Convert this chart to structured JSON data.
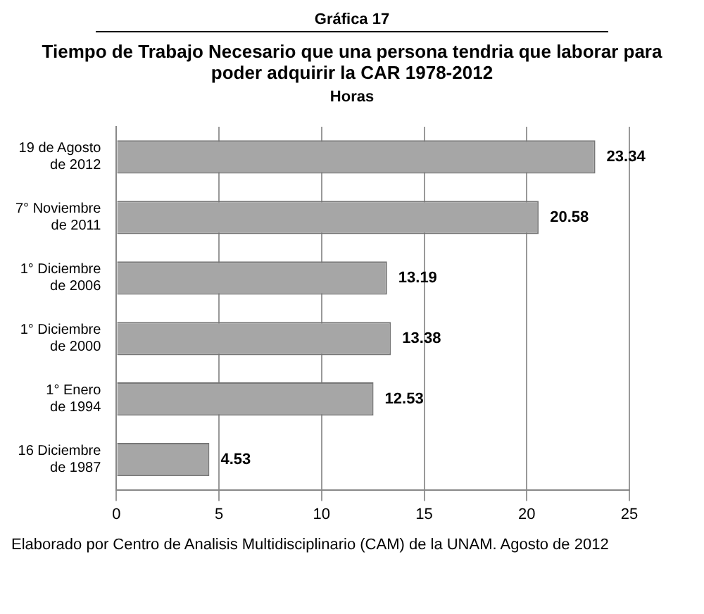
{
  "chart_data": {
    "type": "bar",
    "orientation": "horizontal",
    "title": "Tiempo de Trabajo Necesario que una persona tendria que laborar para poder adquirir la CAR   1978-2012",
    "subtitle": "Horas",
    "annotations": [
      "Gráfica 17",
      "Elaborado por Centro de Analisis Multidisciplinario (CAM) de la UNAM. Agosto de 2012"
    ],
    "categories": [
      "19 de Agosto de 2012",
      "7° Noviembre de 2011",
      "1° Diciembre de 2006",
      "1° Diciembre de 2000",
      "1° Enero de 1994",
      "16 Diciembre de 1987"
    ],
    "values": [
      23.34,
      20.58,
      13.19,
      13.38,
      12.53,
      4.53
    ],
    "color": "#a6a6a6",
    "xlim": [
      0,
      25
    ],
    "xticks": [
      0,
      5,
      10,
      15,
      20,
      25
    ],
    "grid": "x",
    "data_labels": true,
    "legend": false
  }
}
